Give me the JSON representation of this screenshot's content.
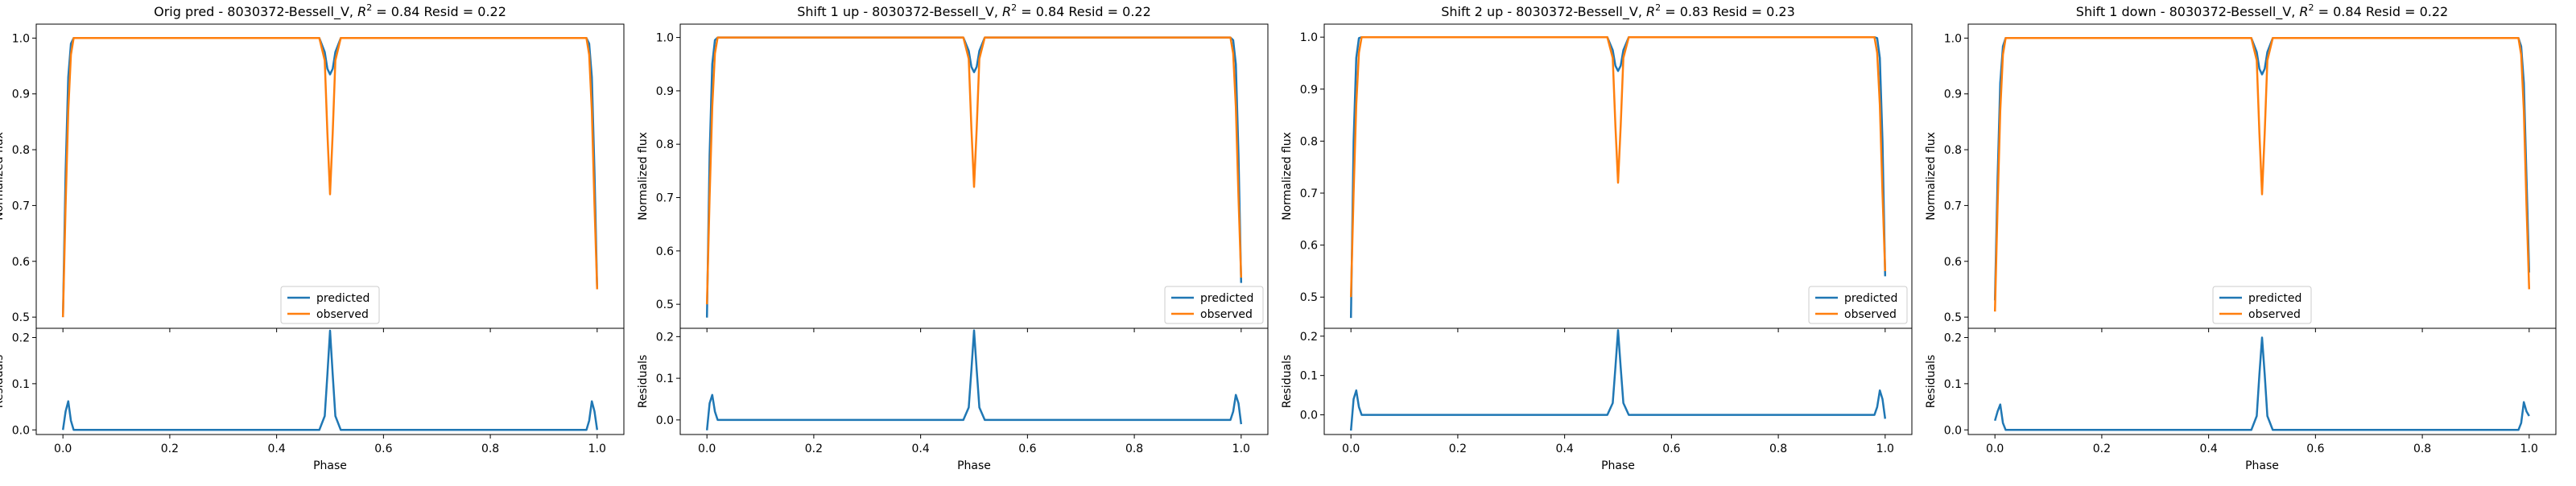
{
  "legend_labels": {
    "predicted": "predicted",
    "observed": "observed"
  },
  "axis_labels": {
    "main_y": "Normalized flux",
    "resid_y": "Residuals",
    "x": "Phase"
  },
  "colors": {
    "predicted": "#1f77b4",
    "observed": "#ff7f0e",
    "axes": "#000000"
  },
  "chart_data": [
    {
      "type": "line",
      "title": "Orig pred - 8030372-Bessell_V, R² = 0.84 Resid = 0.22",
      "title_parts": {
        "prefix": "Orig pred - 8030372-Bessell_V, ",
        "r2_symbol": "R",
        "r2_exp": "2",
        "r2_value": " = 0.84 Resid = 0.22"
      },
      "xlabel": "Phase",
      "ylabel": "Normalized flux",
      "resid_ylabel": "Residuals",
      "xlim": [
        -0.05,
        1.05
      ],
      "ylim": [
        0.48,
        1.025
      ],
      "resid_ylim": [
        -0.01,
        0.22
      ],
      "xticks": [
        0.0,
        0.2,
        0.4,
        0.6,
        0.8,
        1.0
      ],
      "yticks": [
        0.5,
        0.6,
        0.7,
        0.8,
        0.9,
        1.0
      ],
      "resid_yticks": [
        0.0,
        0.1,
        0.2
      ],
      "legend": "lower-center",
      "series": [
        {
          "name": "predicted",
          "x": [
            0.0,
            0.005,
            0.01,
            0.015,
            0.02,
            0.03,
            0.48,
            0.49,
            0.495,
            0.5,
            0.505,
            0.51,
            0.52,
            0.97,
            0.98,
            0.985,
            0.99,
            0.995,
            1.0
          ],
          "values": [
            0.5,
            0.76,
            0.93,
            0.99,
            1.0,
            1.0,
            1.0,
            0.975,
            0.945,
            0.935,
            0.945,
            0.975,
            1.0,
            1.0,
            1.0,
            0.99,
            0.93,
            0.76,
            0.55
          ]
        },
        {
          "name": "observed",
          "x": [
            0.0,
            0.005,
            0.01,
            0.015,
            0.02,
            0.03,
            0.48,
            0.49,
            0.495,
            0.5,
            0.505,
            0.51,
            0.52,
            0.97,
            0.98,
            0.985,
            0.99,
            0.995,
            1.0
          ],
          "values": [
            0.5,
            0.7,
            0.87,
            0.97,
            1.0,
            1.0,
            1.0,
            0.96,
            0.83,
            0.72,
            0.83,
            0.96,
            1.0,
            1.0,
            1.0,
            0.97,
            0.87,
            0.7,
            0.55
          ]
        }
      ],
      "residuals": {
        "x": [
          0.0,
          0.005,
          0.01,
          0.015,
          0.02,
          0.03,
          0.48,
          0.49,
          0.495,
          0.5,
          0.505,
          0.51,
          0.52,
          0.97,
          0.98,
          0.985,
          0.99,
          0.995,
          1.0
        ],
        "values": [
          0.0,
          0.04,
          0.062,
          0.02,
          0.0,
          0.0,
          0.0,
          0.03,
          0.12,
          0.215,
          0.12,
          0.03,
          0.0,
          0.0,
          0.0,
          0.02,
          0.062,
          0.04,
          0.0
        ]
      }
    },
    {
      "type": "line",
      "title": "Shift 1 up - 8030372-Bessell_V, R² = 0.84 Resid = 0.22",
      "title_parts": {
        "prefix": "Shift 1 up - 8030372-Bessell_V, ",
        "r2_symbol": "R",
        "r2_exp": "2",
        "r2_value": " = 0.84 Resid = 0.22"
      },
      "xlabel": "Phase",
      "ylabel": "Normalized flux",
      "resid_ylabel": "Residuals",
      "xlim": [
        -0.05,
        1.05
      ],
      "ylim": [
        0.455,
        1.025
      ],
      "resid_ylim": [
        -0.035,
        0.22
      ],
      "xticks": [
        0.0,
        0.2,
        0.4,
        0.6,
        0.8,
        1.0
      ],
      "yticks": [
        0.5,
        0.6,
        0.7,
        0.8,
        0.9,
        1.0
      ],
      "resid_yticks": [
        0.0,
        0.1,
        0.2
      ],
      "legend": "lower-right",
      "series": [
        {
          "name": "predicted",
          "x": [
            0.0,
            0.005,
            0.01,
            0.015,
            0.02,
            0.03,
            0.48,
            0.49,
            0.495,
            0.5,
            0.505,
            0.51,
            0.52,
            0.97,
            0.98,
            0.985,
            0.99,
            0.995,
            1.0
          ],
          "values": [
            0.475,
            0.78,
            0.95,
            0.995,
            1.0,
            1.0,
            1.0,
            0.975,
            0.945,
            0.935,
            0.945,
            0.975,
            1.0,
            1.0,
            1.0,
            0.995,
            0.95,
            0.78,
            0.54
          ]
        },
        {
          "name": "observed",
          "x": [
            0.0,
            0.005,
            0.01,
            0.015,
            0.02,
            0.03,
            0.48,
            0.49,
            0.495,
            0.5,
            0.505,
            0.51,
            0.52,
            0.97,
            0.98,
            0.985,
            0.99,
            0.995,
            1.0
          ],
          "values": [
            0.5,
            0.7,
            0.87,
            0.97,
            1.0,
            1.0,
            1.0,
            0.96,
            0.83,
            0.72,
            0.83,
            0.96,
            1.0,
            1.0,
            1.0,
            0.97,
            0.87,
            0.7,
            0.55
          ]
        }
      ],
      "residuals": {
        "x": [
          0.0,
          0.005,
          0.01,
          0.015,
          0.02,
          0.03,
          0.48,
          0.49,
          0.495,
          0.5,
          0.505,
          0.51,
          0.52,
          0.97,
          0.98,
          0.985,
          0.99,
          0.995,
          1.0
        ],
        "values": [
          -0.025,
          0.04,
          0.06,
          0.02,
          0.0,
          0.0,
          0.0,
          0.03,
          0.12,
          0.215,
          0.12,
          0.03,
          0.0,
          0.0,
          0.0,
          0.02,
          0.06,
          0.04,
          -0.01
        ]
      }
    },
    {
      "type": "line",
      "title": "Shift 2 up - 8030372-Bessell_V, R² = 0.83 Resid = 0.23",
      "title_parts": {
        "prefix": "Shift 2 up - 8030372-Bessell_V, ",
        "r2_symbol": "R",
        "r2_exp": "2",
        "r2_value": " = 0.83 Resid = 0.23"
      },
      "xlabel": "Phase",
      "ylabel": "Normalized flux",
      "resid_ylabel": "Residuals",
      "xlim": [
        -0.05,
        1.05
      ],
      "ylim": [
        0.44,
        1.025
      ],
      "resid_ylim": [
        -0.05,
        0.22
      ],
      "xticks": [
        0.0,
        0.2,
        0.4,
        0.6,
        0.8,
        1.0
      ],
      "yticks": [
        0.5,
        0.6,
        0.7,
        0.8,
        0.9,
        1.0
      ],
      "resid_yticks": [
        0.0,
        0.1,
        0.2
      ],
      "legend": "lower-right",
      "series": [
        {
          "name": "predicted",
          "x": [
            0.0,
            0.005,
            0.01,
            0.015,
            0.02,
            0.03,
            0.48,
            0.49,
            0.495,
            0.5,
            0.505,
            0.51,
            0.52,
            0.97,
            0.98,
            0.985,
            0.99,
            0.995,
            1.0
          ],
          "values": [
            0.46,
            0.8,
            0.96,
            0.998,
            1.0,
            1.0,
            1.0,
            0.975,
            0.945,
            0.935,
            0.945,
            0.975,
            1.0,
            1.0,
            1.0,
            0.998,
            0.96,
            0.8,
            0.54
          ]
        },
        {
          "name": "observed",
          "x": [
            0.0,
            0.005,
            0.01,
            0.015,
            0.02,
            0.03,
            0.48,
            0.49,
            0.495,
            0.5,
            0.505,
            0.51,
            0.52,
            0.97,
            0.98,
            0.985,
            0.99,
            0.995,
            1.0
          ],
          "values": [
            0.5,
            0.7,
            0.87,
            0.97,
            1.0,
            1.0,
            1.0,
            0.96,
            0.83,
            0.72,
            0.83,
            0.96,
            1.0,
            1.0,
            1.0,
            0.97,
            0.87,
            0.7,
            0.55
          ]
        }
      ],
      "residuals": {
        "x": [
          0.0,
          0.005,
          0.01,
          0.015,
          0.02,
          0.03,
          0.48,
          0.49,
          0.495,
          0.5,
          0.505,
          0.51,
          0.52,
          0.97,
          0.98,
          0.985,
          0.99,
          0.995,
          1.0
        ],
        "values": [
          -0.04,
          0.04,
          0.062,
          0.02,
          0.0,
          0.0,
          0.0,
          0.03,
          0.12,
          0.215,
          0.12,
          0.03,
          0.0,
          0.0,
          0.0,
          0.02,
          0.062,
          0.04,
          -0.01
        ]
      }
    },
    {
      "type": "line",
      "title": "Shift 1 down - 8030372-Bessell_V, R² = 0.84 Resid = 0.22",
      "title_parts": {
        "prefix": "Shift 1 down - 8030372-Bessell_V, ",
        "r2_symbol": "R",
        "r2_exp": "2",
        "r2_value": " = 0.84 Resid = 0.22"
      },
      "xlabel": "Phase",
      "ylabel": "Normalized flux",
      "resid_ylabel": "Residuals",
      "xlim": [
        -0.05,
        1.05
      ],
      "ylim": [
        0.48,
        1.025
      ],
      "resid_ylim": [
        -0.01,
        0.22
      ],
      "xticks": [
        0.0,
        0.2,
        0.4,
        0.6,
        0.8,
        1.0
      ],
      "yticks": [
        0.5,
        0.6,
        0.7,
        0.8,
        0.9,
        1.0
      ],
      "resid_yticks": [
        0.0,
        0.1,
        0.2
      ],
      "legend": "lower-center",
      "series": [
        {
          "name": "predicted",
          "x": [
            0.0,
            0.005,
            0.01,
            0.015,
            0.02,
            0.03,
            0.48,
            0.49,
            0.495,
            0.5,
            0.505,
            0.51,
            0.52,
            0.97,
            0.98,
            0.985,
            0.99,
            0.995,
            1.0
          ],
          "values": [
            0.53,
            0.75,
            0.92,
            0.985,
            1.0,
            1.0,
            1.0,
            0.975,
            0.945,
            0.935,
            0.945,
            0.975,
            1.0,
            1.0,
            1.0,
            0.985,
            0.92,
            0.75,
            0.58
          ]
        },
        {
          "name": "observed",
          "x": [
            0.0,
            0.005,
            0.01,
            0.015,
            0.02,
            0.03,
            0.48,
            0.49,
            0.495,
            0.5,
            0.505,
            0.51,
            0.52,
            0.97,
            0.98,
            0.985,
            0.99,
            0.995,
            1.0
          ],
          "values": [
            0.51,
            0.7,
            0.87,
            0.97,
            1.0,
            1.0,
            1.0,
            0.96,
            0.83,
            0.72,
            0.83,
            0.96,
            1.0,
            1.0,
            1.0,
            0.97,
            0.87,
            0.7,
            0.55
          ]
        }
      ],
      "residuals": {
        "x": [
          0.0,
          0.005,
          0.01,
          0.015,
          0.02,
          0.03,
          0.48,
          0.49,
          0.495,
          0.5,
          0.505,
          0.51,
          0.52,
          0.97,
          0.98,
          0.985,
          0.99,
          0.995,
          1.0
        ],
        "values": [
          0.02,
          0.04,
          0.055,
          0.015,
          0.0,
          0.0,
          0.0,
          0.03,
          0.12,
          0.2,
          0.12,
          0.03,
          0.0,
          0.0,
          0.0,
          0.015,
          0.06,
          0.04,
          0.03
        ]
      }
    }
  ]
}
